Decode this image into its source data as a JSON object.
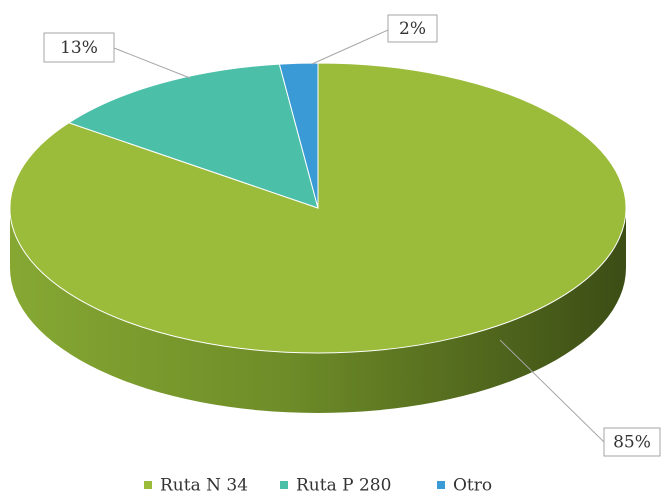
{
  "chart_data": {
    "type": "pie",
    "categories": [
      "Ruta N 34",
      "Ruta P 280",
      "Otro"
    ],
    "values": [
      85,
      13,
      2
    ],
    "value_labels": [
      "85%",
      "13%",
      "2%"
    ],
    "colors": [
      "#9bbb3a",
      "#4bbfa8",
      "#3a9ad6"
    ],
    "legend": "bottom"
  }
}
